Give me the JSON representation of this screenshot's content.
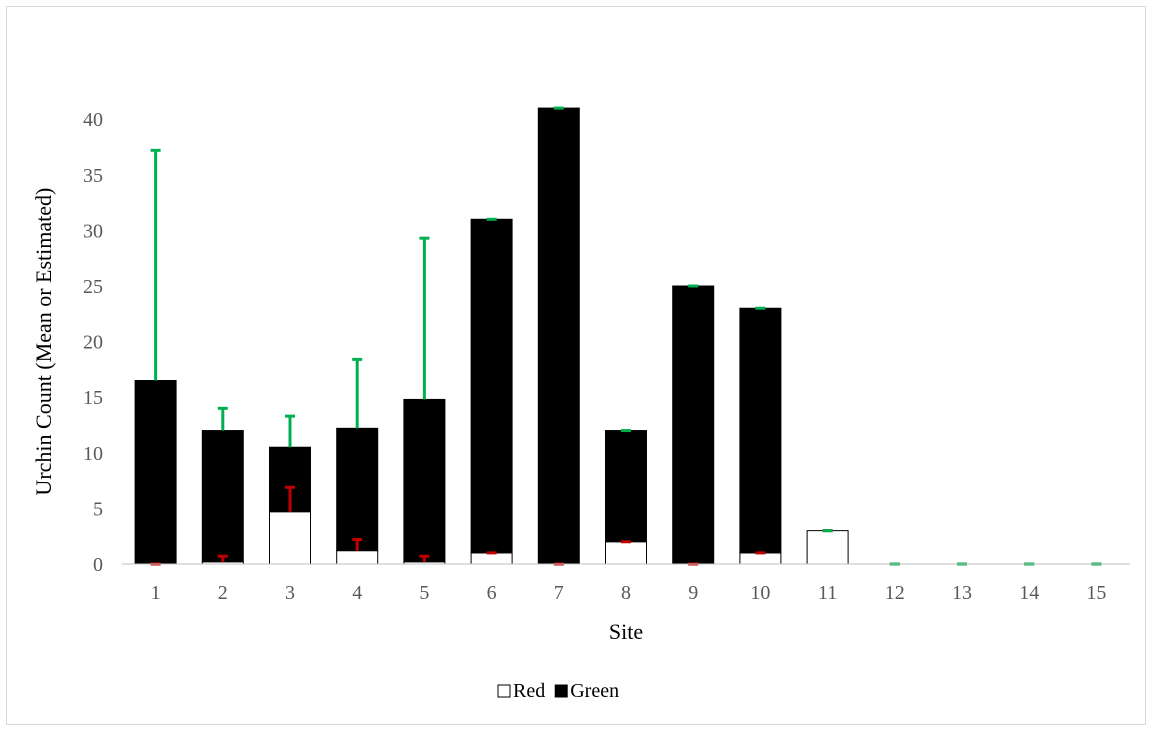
{
  "chart_data": {
    "type": "bar",
    "stacked": true,
    "title": "",
    "xlabel": "Site",
    "ylabel": "Urchin Count (Mean or Estimated)",
    "categories": [
      "1",
      "2",
      "3",
      "4",
      "5",
      "6",
      "7",
      "8",
      "9",
      "10",
      "11",
      "12",
      "13",
      "14",
      "15"
    ],
    "ylim": [
      0,
      40
    ],
    "yticks": [
      0,
      5,
      10,
      15,
      20,
      25,
      30,
      35,
      40
    ],
    "grid": false,
    "legend_position": "bottom",
    "series": [
      {
        "name": "Red",
        "fill": "#ffffff",
        "stroke": "#000000",
        "values": [
          0,
          0.2,
          4.7,
          1.2,
          0.2,
          1.0,
          0,
          2.0,
          0,
          1.0,
          3.0,
          0,
          0,
          0,
          0
        ],
        "error_plus": [
          0,
          0.5,
          2.2,
          1.0,
          0.5,
          0,
          0,
          0,
          0,
          0,
          0,
          0,
          0,
          0,
          0
        ],
        "error_color": "#c00000"
      },
      {
        "name": "Green",
        "fill": "#000000",
        "stroke": "#000000",
        "values": [
          16.5,
          11.8,
          5.8,
          11.0,
          14.6,
          30.0,
          41.0,
          10.0,
          25.0,
          22.0,
          0,
          0,
          0,
          0,
          0
        ],
        "error_plus": [
          20.7,
          2.0,
          2.8,
          6.2,
          14.5,
          0,
          0,
          0,
          0,
          0,
          0,
          0,
          0,
          0,
          0
        ],
        "error_color": "#00b050"
      }
    ]
  }
}
